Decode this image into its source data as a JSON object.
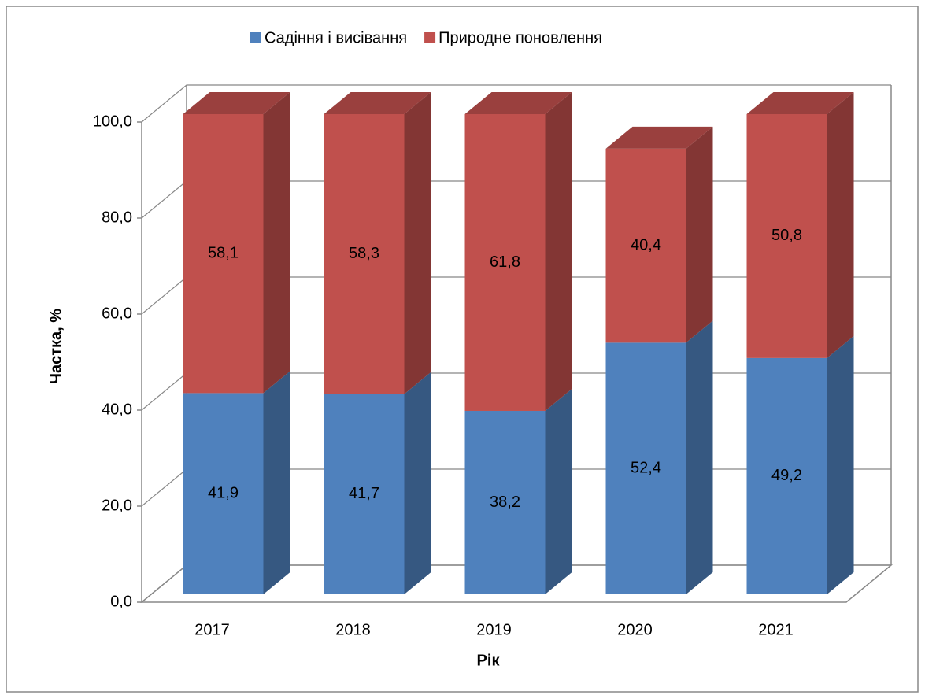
{
  "chart_data": {
    "type": "bar3d_stacked",
    "x_label": "Рік",
    "y_label": "Частка, %",
    "categories": [
      "2017",
      "2018",
      "2019",
      "2020",
      "2021"
    ],
    "series": [
      {
        "name": "Садіння і висівання",
        "color": "#4f81bd",
        "values": [
          41.9,
          41.7,
          38.2,
          52.4,
          49.2
        ],
        "value_labels": [
          "41,9",
          "41,7",
          "38,2",
          "52,4",
          "49,2"
        ]
      },
      {
        "name": "Природне поновлення",
        "color": "#c0504d",
        "values": [
          58.1,
          58.3,
          61.8,
          40.4,
          50.8
        ],
        "value_labels": [
          "58,1",
          "58,3",
          "61,8",
          "40,4",
          "50,8"
        ]
      }
    ],
    "ylim": [
      0,
      100
    ],
    "yticks": [
      {
        "value": 0,
        "label": "0,0"
      },
      {
        "value": 20,
        "label": "20,0"
      },
      {
        "value": 40,
        "label": "40,0"
      },
      {
        "value": 60,
        "label": "60,0"
      },
      {
        "value": 80,
        "label": "80,0"
      },
      {
        "value": 100,
        "label": "100,0"
      }
    ],
    "grid": true,
    "legend": "top"
  }
}
